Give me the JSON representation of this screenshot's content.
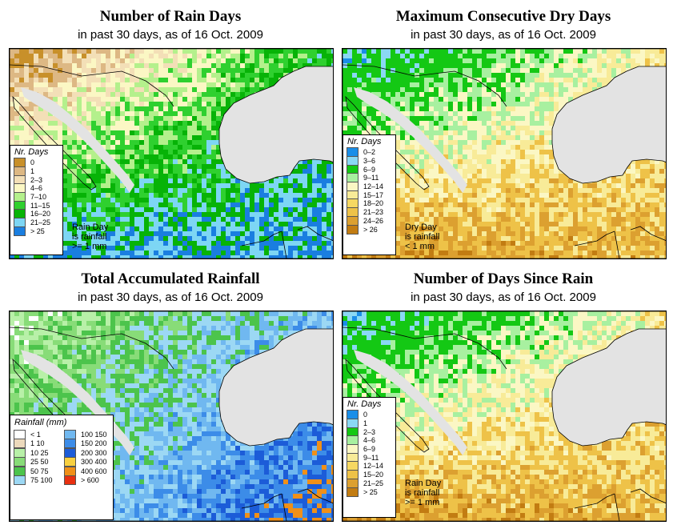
{
  "panels": [
    {
      "title": "Number of Rain Days",
      "subtitle": "in past 30 days, as of  16 Oct. 2009",
      "legend_title": "Nr. Days",
      "legend": [
        {
          "label": "0",
          "color": "#c8902a"
        },
        {
          "label": "1",
          "color": "#ddb884"
        },
        {
          "label": "2–3",
          "color": "#f3dfb7"
        },
        {
          "label": "4–6",
          "color": "#fbf7c4"
        },
        {
          "label": "7–10",
          "color": "#b4f08c"
        },
        {
          "label": "11–15",
          "color": "#2fd02f"
        },
        {
          "label": "16–20",
          "color": "#07b307"
        },
        {
          "label": "21–25",
          "color": "#7dd6f4"
        },
        {
          "label": "> 25",
          "color": "#1a7ee0"
        }
      ],
      "note": [
        "Rain Day",
        "is rainfall",
        ">= 1 mm"
      ],
      "palette": [
        "#c8902a",
        "#ddb884",
        "#f3dfb7",
        "#fbf7c4",
        "#b4f08c",
        "#2fd02f",
        "#07b307",
        "#7dd6f4",
        "#1a7ee0"
      ]
    },
    {
      "title": "Maximum Consecutive Dry Days",
      "subtitle": "in past 30 days, as of  16 Oct. 2009",
      "legend_title": "Nr. Days",
      "legend": [
        {
          "label": "0–2",
          "color": "#1a8ee8"
        },
        {
          "label": "3–6",
          "color": "#8ad8f4"
        },
        {
          "label": "6–9",
          "color": "#14c814"
        },
        {
          "label": "9–11",
          "color": "#a8f0a0"
        },
        {
          "label": "12–14",
          "color": "#fbf7c4"
        },
        {
          "label": "15–17",
          "color": "#f8eb98"
        },
        {
          "label": "18–20",
          "color": "#f6d862"
        },
        {
          "label": "21–23",
          "color": "#eec248"
        },
        {
          "label": "24–26",
          "color": "#dca030"
        },
        {
          "label": "> 26",
          "color": "#c27c12"
        }
      ],
      "note": [
        "Dry Day",
        "is rainfall",
        "< 1 mm"
      ],
      "palette": [
        "#c27c12",
        "#dca030",
        "#eec248",
        "#f8eb98",
        "#fbf7c4",
        "#a8f0a0",
        "#14c814",
        "#14c814",
        "#8ad8f4",
        "#1a8ee8"
      ]
    },
    {
      "title": "Total Accumulated Rainfall",
      "subtitle": "in past 30 days, as of  16 Oct. 2009",
      "legend_title": "Rainfall (mm)",
      "legend_left": [
        {
          "label": "< 1",
          "color": "#ffffff"
        },
        {
          "label": "1   10",
          "color": "#ecd9bc"
        },
        {
          "label": "10   25",
          "color": "#b8f0a8"
        },
        {
          "label": "25   50",
          "color": "#88dc78"
        },
        {
          "label": "50   75",
          "color": "#4cc44c"
        },
        {
          "label": "75  100",
          "color": "#9cd8f4"
        }
      ],
      "legend_right": [
        {
          "label": "100  150",
          "color": "#70b8f0"
        },
        {
          "label": "150  200",
          "color": "#3c8ce8"
        },
        {
          "label": "200  300",
          "color": "#1c5cd8"
        },
        {
          "label": "300  400",
          "color": "#f8d040"
        },
        {
          "label": "400  600",
          "color": "#f09018"
        },
        {
          "label": "> 600",
          "color": "#e83010"
        }
      ],
      "palette": [
        "#ecd9bc",
        "#ffffff",
        "#b8f0a8",
        "#88dc78",
        "#4cc44c",
        "#9cd8f4",
        "#70b8f0",
        "#3c8ce8",
        "#1c5cd8",
        "#f09018"
      ]
    },
    {
      "title": "Number of Days Since Rain",
      "subtitle": "in past 30 days, as of  16 Oct. 2009",
      "legend_title": "Nr. Days",
      "legend": [
        {
          "label": "0",
          "color": "#1a8ee8"
        },
        {
          "label": "1",
          "color": "#8ad8f4"
        },
        {
          "label": "2–3",
          "color": "#14c814"
        },
        {
          "label": "4–6",
          "color": "#a8f0a0"
        },
        {
          "label": "6–9",
          "color": "#fbf7c4"
        },
        {
          "label": "9–11",
          "color": "#f8eb98"
        },
        {
          "label": "12–14",
          "color": "#f6d862"
        },
        {
          "label": "15–20",
          "color": "#eec248"
        },
        {
          "label": "21–25",
          "color": "#dca030"
        },
        {
          "label": "> 25",
          "color": "#c27c12"
        }
      ],
      "note": [
        "Rain Day",
        "is rainfall",
        ">= 1 mm"
      ],
      "palette": [
        "#c27c12",
        "#dca030",
        "#eec248",
        "#f8eb98",
        "#fbf7c4",
        "#a8f0a0",
        "#14c814",
        "#14c814",
        "#8ad8f4",
        "#1a8ee8"
      ]
    }
  ]
}
